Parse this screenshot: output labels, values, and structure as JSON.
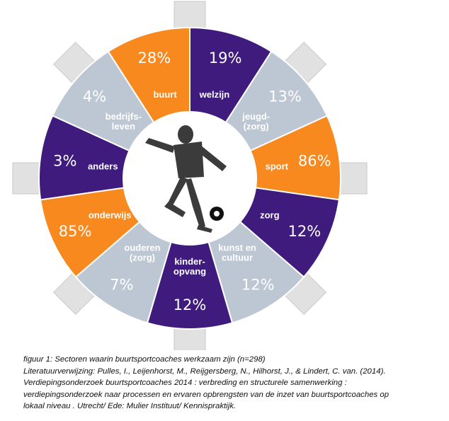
{
  "chart_data": {
    "type": "pie",
    "segments": [
      {
        "label": "welzijn",
        "value": "19%",
        "color": "#3f1b7e"
      },
      {
        "label": "jeugd-\n(zorg)",
        "value": "13%",
        "color": "#bdc7d3"
      },
      {
        "label": "sport",
        "value": "86%",
        "color": "#f7891f"
      },
      {
        "label": "zorg",
        "value": "12%",
        "color": "#3f1b7e"
      },
      {
        "label": "kunst en\ncultuur",
        "value": "12%",
        "color": "#bdc7d3"
      },
      {
        "label": "kinder-\nopvang",
        "value": "12%",
        "color": "#3f1b7e"
      },
      {
        "label": "ouderen\n(zorg)",
        "value": "7%",
        "color": "#bdc7d3"
      },
      {
        "label": "onderwijs",
        "value": "85%",
        "color": "#f7891f"
      },
      {
        "label": "anders",
        "value": "3%",
        "color": "#3f1b7e"
      },
      {
        "label": "bedrijfs-\nleven",
        "value": "4%",
        "color": "#bdc7d3"
      },
      {
        "label": "buurt",
        "value": "28%",
        "color": "#f7891f"
      }
    ]
  },
  "caption": {
    "line1": "figuur 1:  Sectoren waarin buurtsportcoaches werkzaam zijn (n=298)",
    "line2": "Literatuurverwijzing: Pulles, I., Leijenhorst, M., Reijgersberg, N., Hilhorst, J., & Lindert, C. van. (2014).",
    "line3": "Verdiepingsonderzoek buurtsportcoaches 2014 : verbreding en structurele samenwerking :",
    "line4": "verdiepingsonderzoek naar processen en ervaren opbrengsten van de inzet van buurtsportcoaches op",
    "line5": "lokaal niveau . Utrecht/ Ede: Mulier Instituut/ Kennispraktijk."
  }
}
